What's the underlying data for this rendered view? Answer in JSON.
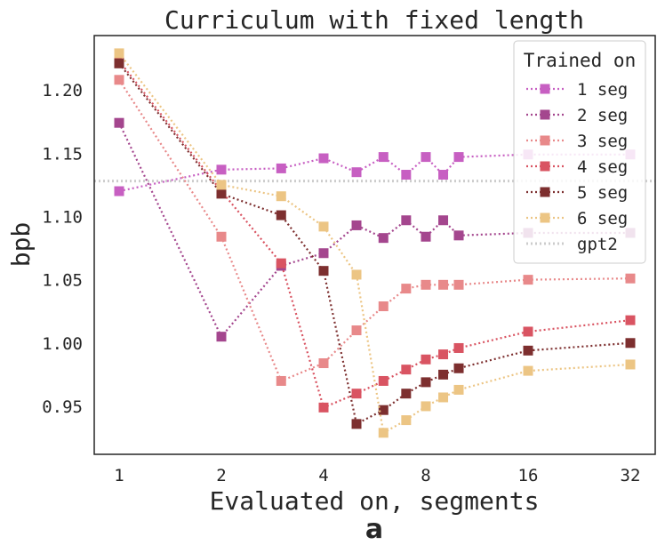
{
  "chart_data": {
    "type": "line",
    "title": "Curriculum with fixed length",
    "xlabel": "Evaluated on, segments",
    "ylabel": "bpb",
    "panel_label": "a",
    "x_scale": "log2",
    "xlim": [
      1,
      32
    ],
    "ylim": [
      0.912,
      1.243
    ],
    "x_ticks": [
      1,
      2,
      4,
      8,
      16,
      32
    ],
    "x_tick_labels": [
      "1",
      "2",
      "4",
      "8",
      "16",
      "32"
    ],
    "y_ticks": [
      0.95,
      1.0,
      1.05,
      1.1,
      1.15,
      1.2
    ],
    "y_tick_labels": [
      "0.95",
      "1.00",
      "1.05",
      "1.10",
      "1.15",
      "1.20"
    ],
    "grid": false,
    "legend": {
      "title": "Trained on",
      "position": "top-right"
    },
    "x": [
      1,
      2,
      3,
      4,
      5,
      6,
      7,
      8,
      9,
      10,
      16,
      32
    ],
    "series": [
      {
        "name": "1 seg",
        "color": "#c75fc2",
        "marker": "square",
        "values": [
          1.12,
          1.137,
          1.138,
          1.146,
          1.135,
          1.147,
          1.133,
          1.147,
          1.133,
          1.147,
          1.149,
          1.149
        ]
      },
      {
        "name": "2 seg",
        "color": "#a4468e",
        "marker": "square",
        "values": [
          1.174,
          1.005,
          1.061,
          1.071,
          1.093,
          1.083,
          1.097,
          1.084,
          1.097,
          1.085,
          1.087,
          1.087
        ]
      },
      {
        "name": "3 seg",
        "color": "#e8898a",
        "marker": "square",
        "values": [
          1.208,
          1.084,
          0.97,
          0.984,
          1.01,
          1.029,
          1.043,
          1.046,
          1.046,
          1.046,
          1.05,
          1.051
        ]
      },
      {
        "name": "4 seg",
        "color": "#d95462",
        "marker": "square",
        "values": [
          1.223,
          1.12,
          1.063,
          0.949,
          0.96,
          0.97,
          0.979,
          0.987,
          0.991,
          0.996,
          1.009,
          1.018
        ]
      },
      {
        "name": "5 seg",
        "color": "#7d2f2f",
        "marker": "square",
        "values": [
          1.221,
          1.118,
          1.101,
          1.057,
          0.936,
          0.947,
          0.96,
          0.969,
          0.975,
          0.98,
          0.994,
          1.0
        ]
      },
      {
        "name": "6 seg",
        "color": "#ecc584",
        "marker": "square",
        "values": [
          1.229,
          1.125,
          1.116,
          1.092,
          1.054,
          0.929,
          0.939,
          0.95,
          0.957,
          0.963,
          0.978,
          0.983
        ]
      }
    ],
    "reference_line": {
      "name": "gpt2",
      "value": 1.128,
      "color": "#cccccc",
      "style": "dotted"
    }
  }
}
